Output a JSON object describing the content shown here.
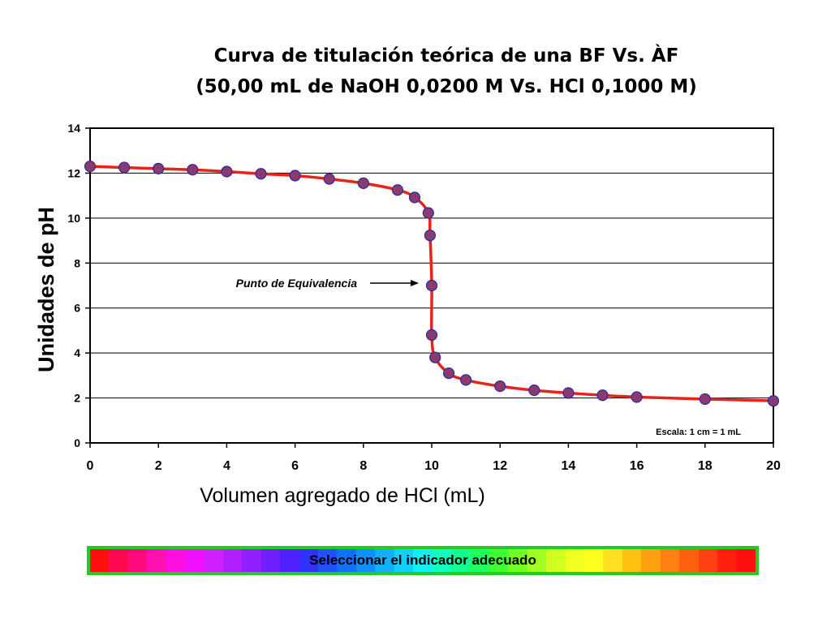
{
  "chart_data": {
    "type": "line",
    "title_line1": "Curva de titulación teórica de una BF Vs. ÀF",
    "title_line2": "(50,00 mL de NaOH 0,0200 M Vs. HCl 0,1000 M)",
    "xlabel": "Volumen agregado de HCl (mL)",
    "ylabel": "Unidades de pH",
    "xlim": [
      0,
      20
    ],
    "ylim": [
      0,
      14
    ],
    "xticks": [
      0,
      2,
      4,
      6,
      8,
      10,
      12,
      14,
      16,
      18,
      20
    ],
    "yticks": [
      0,
      2,
      4,
      6,
      8,
      10,
      12,
      14
    ],
    "grid": "horizontal",
    "points": {
      "x": [
        0,
        1,
        2,
        3,
        4,
        5,
        6,
        7,
        8,
        9,
        9.5,
        9.9,
        9.95,
        10.0,
        10.0,
        10.1,
        10.5,
        11,
        12,
        13,
        14,
        15,
        16,
        18,
        20
      ],
      "y": [
        12.3,
        12.25,
        12.2,
        12.15,
        12.07,
        11.97,
        11.89,
        11.74,
        11.55,
        11.25,
        10.92,
        10.23,
        9.23,
        7.0,
        4.8,
        3.8,
        3.1,
        2.8,
        2.52,
        2.34,
        2.22,
        2.12,
        2.04,
        1.95,
        1.87
      ]
    },
    "annotation": "Punto de Equivalencia",
    "annotation_target": {
      "x": 10,
      "y": 7
    },
    "scale_note": "Escala: 1 cm = 1 mL",
    "line_color": "#e8241a",
    "marker_fill": "#8b3a6e",
    "marker_stroke": "#2a2aa0"
  },
  "indicator": {
    "label": "Seleccionar el indicador adecuado",
    "border_color": "#22cc22",
    "colors": [
      "#ff1010",
      "#ff0a50",
      "#ff0a80",
      "#ff10b0",
      "#ff10e0",
      "#f010ff",
      "#d020ff",
      "#b020ff",
      "#9020ff",
      "#7020ff",
      "#5020ff",
      "#3030ff",
      "#2050ff",
      "#1070ff",
      "#1090ff",
      "#10b0ff",
      "#10d0ff",
      "#10f0f0",
      "#10ffc0",
      "#10ff90",
      "#20ff60",
      "#40ff30",
      "#70ff20",
      "#a0ff20",
      "#d0ff20",
      "#f0ff20",
      "#ffff20",
      "#ffe020",
      "#ffc010",
      "#ffa010",
      "#ff8010",
      "#ff6010",
      "#ff4010",
      "#ff2010",
      "#ff1010"
    ]
  }
}
